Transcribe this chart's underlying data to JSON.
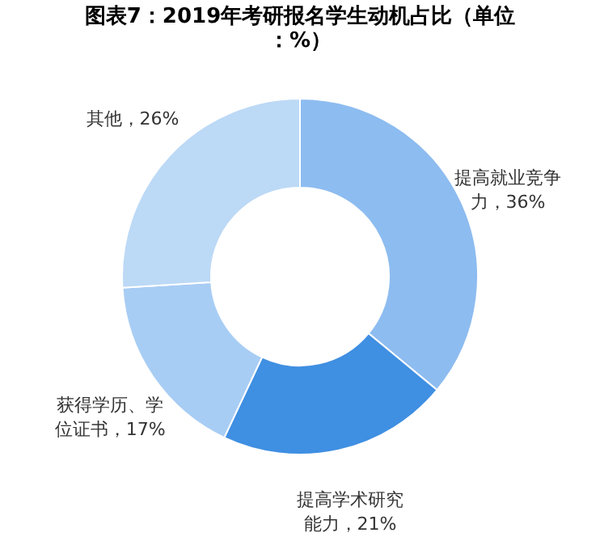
{
  "chart_data": {
    "type": "donut",
    "title": "图表7：2019年考研报名学生动机占比（单位：%）",
    "categories": [
      "提高就业竞争力",
      "提高学术研究能力",
      "获得学历、学位证书",
      "其他"
    ],
    "values": [
      36,
      21,
      17,
      26
    ],
    "value_labels": [
      "36%",
      "21%",
      "17%",
      "26%"
    ],
    "colors": [
      "#8dbcf0",
      "#3f8fe2",
      "#a8cdf4",
      "#bcd9f6"
    ],
    "legend": false
  }
}
